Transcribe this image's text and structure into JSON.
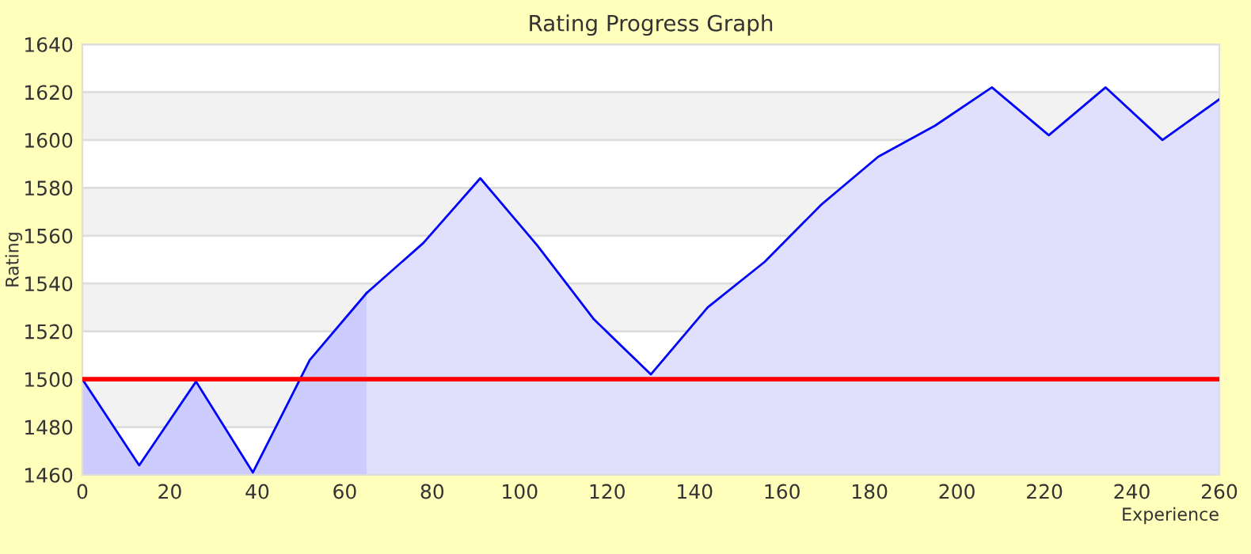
{
  "chart_data": {
    "type": "area",
    "title": "Rating Progress Graph",
    "xlabel": "Experience",
    "ylabel": "Rating",
    "series": [
      {
        "color": "#ccccff",
        "x": [
          0,
          13,
          26,
          39,
          52,
          65
        ],
        "values": [
          1500,
          1464,
          1499,
          1461,
          1508,
          1536
        ]
      },
      {
        "color": "#e0e0fc",
        "x": [
          65,
          78,
          91,
          104,
          117,
          130,
          143,
          156,
          169,
          182,
          195,
          208,
          221,
          234,
          247,
          260
        ],
        "values": [
          1536,
          1557,
          1584,
          1556,
          1525,
          1502,
          1530,
          1549,
          1573,
          1593,
          1606,
          1622,
          1602,
          1622,
          1600,
          1617
        ]
      }
    ],
    "ref_lines": [
      {
        "axis": "y",
        "value": 1500,
        "label": null,
        "color": "#ff0000"
      }
    ],
    "xlim": [
      0,
      260
    ],
    "xticks": [
      0,
      20,
      40,
      60,
      80,
      100,
      120,
      140,
      160,
      180,
      200,
      220,
      240,
      260
    ],
    "ylim": [
      1460,
      1640
    ],
    "yticks": [
      1460,
      1480,
      1500,
      1520,
      1540,
      1560,
      1580,
      1600,
      1620,
      1640
    ],
    "grid": "y",
    "legend": false
  }
}
